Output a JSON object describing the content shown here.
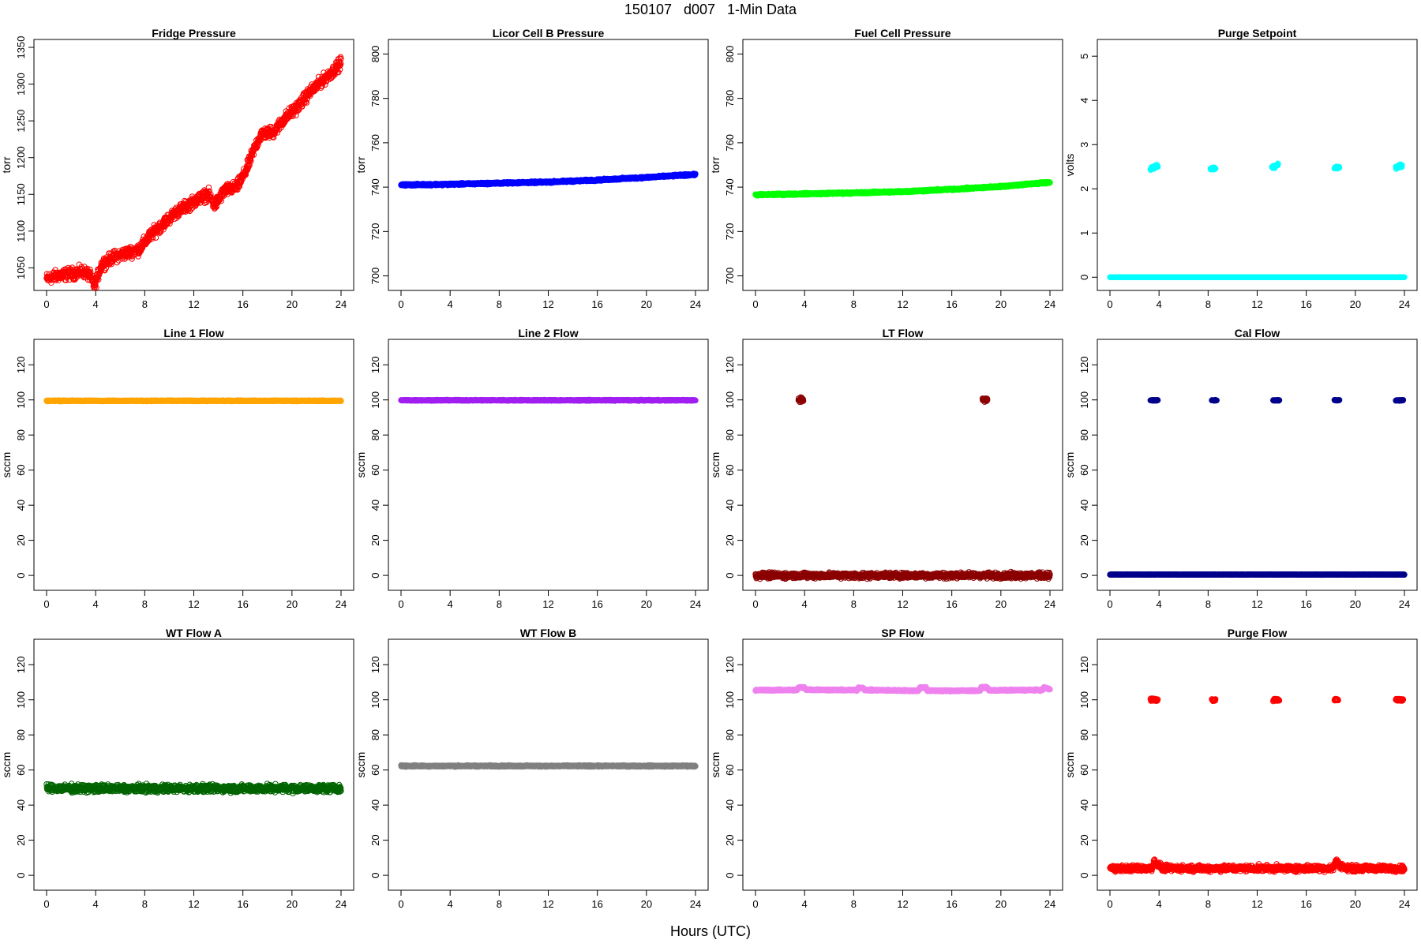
{
  "page": {
    "title": "150107   d007   1-Min Data",
    "xlabel": "Hours (UTC)"
  },
  "chart_data": [
    {
      "id": "fridge",
      "type": "scatter",
      "title": "Fridge Pressure",
      "ylabel": "torr",
      "color": "#ff0000",
      "xlim": [
        0,
        24
      ],
      "ylim": [
        1030,
        1350
      ],
      "xticks": [
        0,
        4,
        8,
        12,
        16,
        20,
        24
      ],
      "yticks": [
        1050,
        1100,
        1150,
        1200,
        1250,
        1300,
        1350
      ],
      "series": [
        {
          "segments": [
            {
              "x": [
                0,
                1,
                2,
                3,
                3.5,
                3.9,
                4.5,
                5.5,
                6.5,
                7.5,
                8.5,
                9.5,
                10.5,
                11.5,
                12.5,
                13.2,
                13.7,
                14.5,
                15.5,
                16.2,
                17,
                17.5,
                18.5,
                19.5,
                20.5,
                21.5,
                22.5,
                23.5,
                24
              ],
              "y": [
                1035,
                1040,
                1042,
                1045,
                1040,
                1025,
                1055,
                1065,
                1070,
                1075,
                1095,
                1110,
                1125,
                1135,
                1145,
                1150,
                1135,
                1155,
                1160,
                1180,
                1215,
                1232,
                1235,
                1255,
                1270,
                1290,
                1305,
                1320,
                1330
              ],
              "noise": 6
            }
          ]
        }
      ]
    },
    {
      "id": "licor",
      "type": "scatter",
      "title": "Licor Cell B Pressure",
      "ylabel": "torr",
      "color": "#0000ff",
      "xlim": [
        0,
        24
      ],
      "ylim": [
        697,
        803
      ],
      "xticks": [
        0,
        4,
        8,
        12,
        16,
        20,
        24
      ],
      "yticks": [
        700,
        720,
        740,
        760,
        780,
        800
      ],
      "series": [
        {
          "segments": [
            {
              "x": [
                0,
                4,
                8,
                12,
                16,
                20,
                24
              ],
              "y": [
                741,
                741.3,
                741.8,
                742.3,
                743.2,
                744.4,
                745.7
              ],
              "noise": 0.3
            }
          ]
        }
      ]
    },
    {
      "id": "fuel",
      "type": "scatter",
      "title": "Fuel Cell Pressure",
      "ylabel": "torr",
      "color": "#00ff00",
      "xlim": [
        0,
        24
      ],
      "ylim": [
        697,
        803
      ],
      "xticks": [
        0,
        4,
        8,
        12,
        16,
        20,
        24
      ],
      "yticks": [
        700,
        720,
        740,
        760,
        780,
        800
      ],
      "series": [
        {
          "segments": [
            {
              "x": [
                0,
                4,
                8,
                12,
                16,
                20,
                24
              ],
              "y": [
                736.5,
                737,
                737.4,
                738,
                739,
                740.3,
                742.2
              ],
              "noise": 0.3
            }
          ]
        }
      ]
    },
    {
      "id": "purge_sp",
      "type": "scatter",
      "title": "Purge Setpoint",
      "ylabel": "volts",
      "color": "#00ffff",
      "xlim": [
        0,
        24
      ],
      "ylim": [
        -0.12,
        5.2
      ],
      "xticks": [
        0,
        4,
        8,
        12,
        16,
        20,
        24
      ],
      "yticks": [
        0,
        1,
        2,
        3,
        4,
        5
      ],
      "series": [
        {
          "segments": [
            {
              "x": [
                0,
                24
              ],
              "y": [
                0,
                0
              ],
              "noise": 0
            },
            {
              "x": [
                3.3,
                3.9
              ],
              "y": [
                2.45,
                2.52
              ],
              "noise": 0.03
            },
            {
              "x": [
                8.2,
                8.6
              ],
              "y": [
                2.45,
                2.47
              ],
              "noise": 0.02
            },
            {
              "x": [
                13.2,
                13.7
              ],
              "y": [
                2.48,
                2.56
              ],
              "noise": 0.03
            },
            {
              "x": [
                18.3,
                18.7
              ],
              "y": [
                2.48,
                2.48
              ],
              "noise": 0.02
            },
            {
              "x": [
                23.3,
                23.8
              ],
              "y": [
                2.48,
                2.53
              ],
              "noise": 0.03
            }
          ]
        }
      ]
    },
    {
      "id": "line1",
      "type": "scatter",
      "title": "Line 1 Flow",
      "ylabel": "sccm",
      "color": "#ffa500",
      "xlim": [
        0,
        24
      ],
      "ylim": [
        -4,
        130
      ],
      "xticks": [
        0,
        4,
        8,
        12,
        16,
        20,
        24
      ],
      "yticks": [
        0,
        20,
        40,
        60,
        80,
        100,
        120
      ],
      "series": [
        {
          "segments": [
            {
              "x": [
                0,
                24
              ],
              "y": [
                99.5,
                99.5
              ],
              "noise": 0.2
            }
          ]
        }
      ]
    },
    {
      "id": "line2",
      "type": "scatter",
      "title": "Line 2 Flow",
      "ylabel": "sccm",
      "color": "#a020f0",
      "xlim": [
        0,
        24
      ],
      "ylim": [
        -4,
        130
      ],
      "xticks": [
        0,
        4,
        8,
        12,
        16,
        20,
        24
      ],
      "yticks": [
        0,
        20,
        40,
        60,
        80,
        100,
        120
      ],
      "series": [
        {
          "segments": [
            {
              "x": [
                0,
                24
              ],
              "y": [
                99.8,
                99.8
              ],
              "noise": 0.2
            }
          ]
        }
      ]
    },
    {
      "id": "lt",
      "type": "scatter",
      "title": "LT Flow",
      "ylabel": "sccm",
      "color": "#8b0000",
      "xlim": [
        0,
        24
      ],
      "ylim": [
        -4,
        130
      ],
      "xticks": [
        0,
        4,
        8,
        12,
        16,
        20,
        24
      ],
      "yticks": [
        0,
        20,
        40,
        60,
        80,
        100,
        120
      ],
      "series": [
        {
          "segments": [
            {
              "x": [
                0,
                24
              ],
              "y": [
                0,
                0
              ],
              "noise": 1.2
            },
            {
              "x": [
                3.5,
                3.9
              ],
              "y": [
                100,
                100
              ],
              "noise": 1.2
            },
            {
              "x": [
                18.5,
                18.9
              ],
              "y": [
                100,
                100
              ],
              "noise": 1.2
            }
          ]
        }
      ]
    },
    {
      "id": "cal",
      "type": "scatter",
      "title": "Cal Flow",
      "ylabel": "sccm",
      "color": "#00008b",
      "xlim": [
        0,
        24
      ],
      "ylim": [
        -4,
        130
      ],
      "xticks": [
        0,
        4,
        8,
        12,
        16,
        20,
        24
      ],
      "yticks": [
        0,
        20,
        40,
        60,
        80,
        100,
        120
      ],
      "series": [
        {
          "segments": [
            {
              "x": [
                0,
                24
              ],
              "y": [
                0.5,
                0.5
              ],
              "noise": 0.1
            },
            {
              "x": [
                3.3,
                3.9
              ],
              "y": [
                99.8,
                99.8
              ],
              "noise": 0.2
            },
            {
              "x": [
                8.3,
                8.7
              ],
              "y": [
                99.8,
                99.8
              ],
              "noise": 0.2
            },
            {
              "x": [
                13.3,
                13.8
              ],
              "y": [
                99.8,
                99.8
              ],
              "noise": 0.2
            },
            {
              "x": [
                18.3,
                18.7
              ],
              "y": [
                99.8,
                99.8
              ],
              "noise": 0.2
            },
            {
              "x": [
                23.3,
                23.9
              ],
              "y": [
                99.8,
                99.8
              ],
              "noise": 0.2
            }
          ]
        }
      ]
    },
    {
      "id": "wta",
      "type": "scatter",
      "title": "WT Flow A",
      "ylabel": "sccm",
      "color": "#006400",
      "xlim": [
        0,
        24
      ],
      "ylim": [
        -4,
        130
      ],
      "xticks": [
        0,
        4,
        8,
        12,
        16,
        20,
        24
      ],
      "yticks": [
        0,
        20,
        40,
        60,
        80,
        100,
        120
      ],
      "series": [
        {
          "segments": [
            {
              "x": [
                0,
                24
              ],
              "y": [
                49.5,
                49.5
              ],
              "noise": 1.6
            }
          ]
        }
      ]
    },
    {
      "id": "wtb",
      "type": "scatter",
      "title": "WT Flow B",
      "ylabel": "sccm",
      "color": "#808080",
      "xlim": [
        0,
        24
      ],
      "ylim": [
        -4,
        130
      ],
      "xticks": [
        0,
        4,
        8,
        12,
        16,
        20,
        24
      ],
      "yticks": [
        0,
        20,
        40,
        60,
        80,
        100,
        120
      ],
      "series": [
        {
          "segments": [
            {
              "x": [
                0,
                24
              ],
              "y": [
                62.3,
                62.3
              ],
              "noise": 0.3
            }
          ]
        }
      ]
    },
    {
      "id": "sp",
      "type": "scatter",
      "title": "SP Flow",
      "ylabel": "sccm",
      "color": "#ee82ee",
      "xlim": [
        0,
        24
      ],
      "ylim": [
        -4,
        130
      ],
      "xticks": [
        0,
        4,
        8,
        12,
        16,
        20,
        24
      ],
      "yticks": [
        0,
        20,
        40,
        60,
        80,
        100,
        120
      ],
      "series": [
        {
          "segments": [
            {
              "x": [
                0,
                3.4,
                3.5,
                4.0,
                4.1,
                8.3,
                8.4,
                8.8,
                8.9,
                13.3,
                13.4,
                13.9,
                14,
                18.3,
                18.4,
                18.9,
                19,
                23.4,
                23.5,
                24
              ],
              "y": [
                105.5,
                105.6,
                107,
                107,
                105.8,
                105.5,
                106.8,
                106.8,
                105.6,
                105.2,
                107,
                107,
                105.2,
                105.2,
                107,
                107,
                105.4,
                105.6,
                107,
                106
              ],
              "noise": 0.3
            }
          ]
        }
      ]
    },
    {
      "id": "purge_flow",
      "type": "scatter",
      "title": "Purge Flow",
      "ylabel": "sccm",
      "color": "#ff0000",
      "xlim": [
        0,
        24
      ],
      "ylim": [
        -4,
        130
      ],
      "xticks": [
        0,
        4,
        8,
        12,
        16,
        20,
        24
      ],
      "yticks": [
        0,
        20,
        40,
        60,
        80,
        100,
        120
      ],
      "series": [
        {
          "segments": [
            {
              "x": [
                0,
                3.4,
                3.6,
                3.9,
                4.3,
                18.2,
                18.4,
                18.7,
                19.2,
                24
              ],
              "y": [
                4,
                4,
                8,
                6,
                4,
                4,
                8,
                6,
                4,
                4
              ],
              "noise": 1.3
            },
            {
              "x": [
                3.3,
                3.9
              ],
              "y": [
                100,
                100
              ],
              "noise": 0.6
            },
            {
              "x": [
                8.3,
                8.6
              ],
              "y": [
                100,
                100
              ],
              "noise": 0.6
            },
            {
              "x": [
                13.3,
                13.8
              ],
              "y": [
                100,
                100
              ],
              "noise": 0.6
            },
            {
              "x": [
                18.3,
                18.6
              ],
              "y": [
                100,
                100
              ],
              "noise": 0.6
            },
            {
              "x": [
                23.3,
                23.9
              ],
              "y": [
                100,
                100
              ],
              "noise": 0.6
            }
          ]
        }
      ]
    }
  ]
}
